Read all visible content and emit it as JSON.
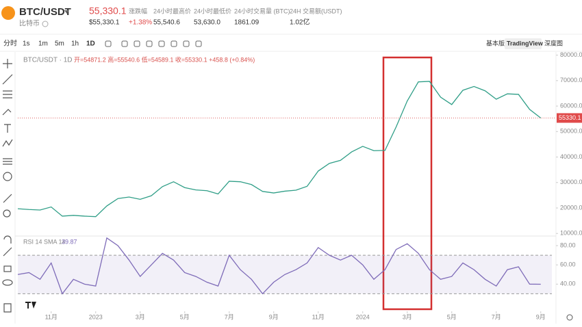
{
  "header": {
    "symbol": "BTC/USDT",
    "name": "比特币",
    "price": "55,330.1",
    "price_usd": "$55,330.1",
    "stats": [
      {
        "label": "涨跌幅",
        "value": "+1.38%"
      },
      {
        "label": "24小时最高价",
        "value": "55,540.6"
      },
      {
        "label": "24小时最低价",
        "value": "53,630.0"
      },
      {
        "label": "24小时交易量 (BTC)",
        "value": "1861.09"
      },
      {
        "label": "24H 交易额(USDT)",
        "value": "1.02亿"
      }
    ]
  },
  "toolbar": {
    "intervals": [
      "分时",
      "1s",
      "1m",
      "5m",
      "1h",
      "1D"
    ],
    "views": [
      "基本版",
      "TradingView",
      "深度图"
    ]
  },
  "chart_data": [
    {
      "type": "line",
      "title": "BTC/USDT · 1D",
      "subtitle": "开=54871.2 高=55540.6 低=54589.1 收=55330.1 +458.8 (+0.84%)",
      "series": [
        {
          "color": "#2f9e87",
          "values": [
            19700,
            19400,
            19200,
            20400,
            16800,
            17100,
            16800,
            16600,
            20800,
            23700,
            24300,
            23400,
            24800,
            28400,
            30300,
            28000,
            27100,
            26800,
            25500,
            30500,
            30300,
            29200,
            26500,
            25900,
            26600,
            27000,
            28500,
            34500,
            37500,
            38700,
            42000,
            44200,
            42500,
            42600,
            51800,
            62000,
            69500,
            69700,
            63500,
            60600,
            66200,
            67700,
            66000,
            62700,
            64800,
            64600,
            58700,
            55330.1
          ]
        }
      ],
      "xlim": [
        0,
        48
      ],
      "xticks": [
        {
          "value": 3,
          "label": "11月"
        },
        {
          "value": 7,
          "label": "2023"
        },
        {
          "value": 11,
          "label": "3月"
        },
        {
          "value": 15,
          "label": "5月"
        },
        {
          "value": 19,
          "label": "7月"
        },
        {
          "value": 23,
          "label": "9月"
        },
        {
          "value": 27,
          "label": "11月"
        },
        {
          "value": 31,
          "label": "2024"
        },
        {
          "value": 35,
          "label": "3月"
        },
        {
          "value": 39,
          "label": "5月"
        },
        {
          "value": 43,
          "label": "7月"
        },
        {
          "value": 47,
          "label": "9月"
        }
      ],
      "ylim": [
        9000,
        81500
      ],
      "yticks": [
        {
          "value": 10000,
          "label": "10000.0"
        },
        {
          "value": 20000,
          "label": "20000.0"
        },
        {
          "value": 30000,
          "label": "30000.0"
        },
        {
          "value": 40000,
          "label": "40000.0"
        },
        {
          "value": 50000,
          "label": "50000.0"
        },
        {
          "value": 60000,
          "label": "60000.0"
        },
        {
          "value": 70000,
          "label": "70000.0"
        },
        {
          "value": 80000,
          "label": "80000.0"
        }
      ]
    },
    {
      "type": "line",
      "title": "RSI 14 SMA 14",
      "series": [
        {
          "color": "#7e6bb8",
          "values": [
            50,
            52,
            45,
            62,
            30,
            45,
            40,
            38,
            88,
            80,
            65,
            48,
            60,
            72,
            65,
            52,
            48,
            42,
            38,
            70,
            55,
            45,
            30,
            42,
            50,
            55,
            62,
            78,
            70,
            65,
            70,
            60,
            45,
            55,
            76,
            82,
            72,
            55,
            45,
            48,
            62,
            55,
            45,
            38,
            55,
            58,
            40,
            39.87
          ]
        }
      ],
      "band": [
        30,
        70
      ],
      "ylim": [
        15,
        90
      ],
      "yticks": [
        {
          "value": 40,
          "label": "40.00"
        },
        {
          "value": 60,
          "label": "60.00"
        },
        {
          "value": 80,
          "label": "80.00"
        }
      ]
    }
  ]
}
